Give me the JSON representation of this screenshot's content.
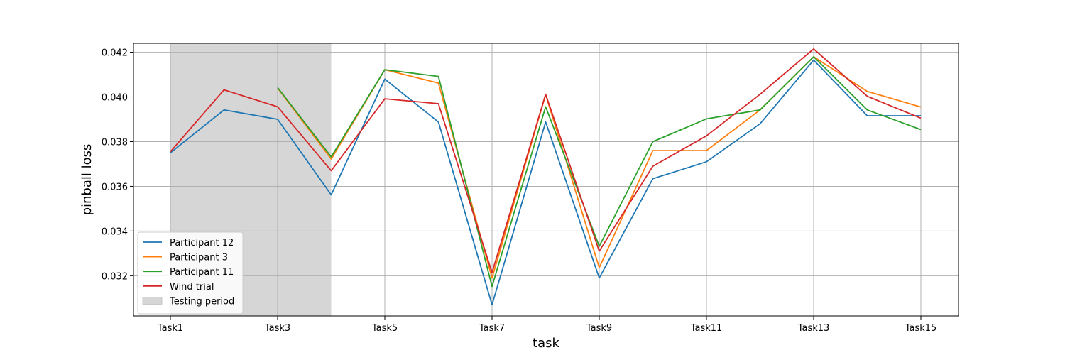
{
  "chart_data": {
    "type": "line",
    "xlabel": "task",
    "ylabel": "pinball loss",
    "x": [
      "Task1",
      "Task2",
      "Task3",
      "Task4",
      "Task5",
      "Task6",
      "Task7",
      "Task8",
      "Task9",
      "Task10",
      "Task11",
      "Task12",
      "Task13",
      "Task14",
      "Task15"
    ],
    "x_tick_labels": [
      "Task1",
      "Task3",
      "Task5",
      "Task7",
      "Task9",
      "Task11",
      "Task13",
      "Task15"
    ],
    "y_ticks": [
      "0.032",
      "0.034",
      "0.036",
      "0.038",
      "0.040",
      "0.042"
    ],
    "ylim": [
      0.0302,
      0.0424
    ],
    "grid": true,
    "legend_position": "lower-left",
    "shaded_region": {
      "name": "Testing period",
      "x_start": "Task1",
      "x_end": "Task4",
      "color": "#d6d6d6"
    },
    "series": [
      {
        "name": "Participant 12",
        "color": "#1f77b4",
        "values": [
          0.0375,
          0.03942,
          0.039,
          0.03562,
          0.0408,
          0.03888,
          0.0307,
          0.03888,
          0.0319,
          0.03634,
          0.0371,
          0.0388,
          0.04165,
          0.03916,
          0.03916
        ]
      },
      {
        "name": "Participant 3",
        "color": "#ff7f0e",
        "values": [
          null,
          null,
          0.0404,
          0.03722,
          0.04122,
          0.04062,
          0.0319,
          0.0401,
          0.03236,
          0.0376,
          0.0376,
          0.03942,
          0.0418,
          0.04025,
          0.03955
        ]
      },
      {
        "name": "Participant 11",
        "color": "#2ca02c",
        "values": [
          null,
          null,
          0.04042,
          0.03732,
          0.04122,
          0.04092,
          0.03152,
          0.03956,
          0.03332,
          0.038,
          0.03902,
          0.03942,
          0.0418,
          0.03942,
          0.03854
        ]
      },
      {
        "name": "Wind trial",
        "color": "#d62728",
        "values": [
          0.03755,
          0.04032,
          0.03956,
          0.0367,
          0.03992,
          0.0397,
          0.03214,
          0.04012,
          0.0331,
          0.0369,
          0.03826,
          0.04012,
          0.04215,
          0.04003,
          0.03905
        ]
      }
    ]
  }
}
